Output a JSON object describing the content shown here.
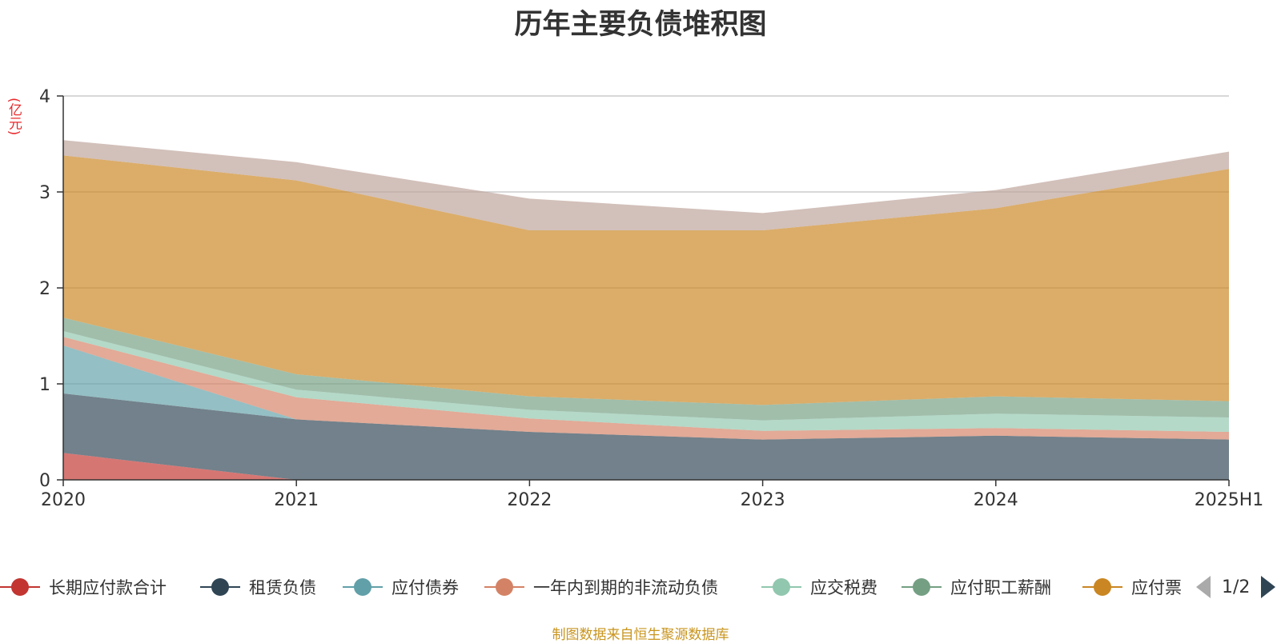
{
  "title": "历年主要负债堆积图",
  "unit_label": "(亿元)",
  "source_note": "制图数据来自恒生聚源数据库",
  "pager": {
    "text": "1/2"
  },
  "chart_data": {
    "type": "area",
    "stacked": true,
    "categories": [
      "2020",
      "2021",
      "2022",
      "2023",
      "2024",
      "2025H1"
    ],
    "ylim": [
      0,
      4
    ],
    "yticks": [
      0,
      1,
      2,
      3,
      4
    ],
    "grid": true,
    "legend_position": "bottom",
    "series": [
      {
        "name": "长期应付款合计",
        "color": "#c23531",
        "values": [
          0.28,
          0.0,
          0.0,
          0.0,
          0.0,
          0.0
        ]
      },
      {
        "name": "租赁负债",
        "color": "#2f4554",
        "values": [
          0.62,
          0.63,
          0.5,
          0.42,
          0.46,
          0.42
        ]
      },
      {
        "name": "应付债券",
        "color": "#61a0a8",
        "values": [
          0.5,
          0.0,
          0.0,
          0.0,
          0.0,
          0.0
        ]
      },
      {
        "name": "一年内到期的非流动负债",
        "color": "#d48265",
        "values": [
          0.09,
          0.23,
          0.14,
          0.09,
          0.08,
          0.08
        ]
      },
      {
        "name": "应交税费",
        "color": "#91c7ae",
        "values": [
          0.06,
          0.08,
          0.09,
          0.11,
          0.15,
          0.15
        ]
      },
      {
        "name": "应付职工薪酬",
        "color": "#749f83",
        "values": [
          0.14,
          0.16,
          0.14,
          0.16,
          0.18,
          0.17
        ]
      },
      {
        "name": "应付票",
        "color": "#ca8622",
        "values": [
          1.69,
          2.02,
          1.73,
          1.82,
          1.96,
          2.42
        ]
      },
      {
        "name": "",
        "color": "#bda29a",
        "values": [
          0.16,
          0.19,
          0.33,
          0.18,
          0.19,
          0.18
        ]
      }
    ]
  }
}
